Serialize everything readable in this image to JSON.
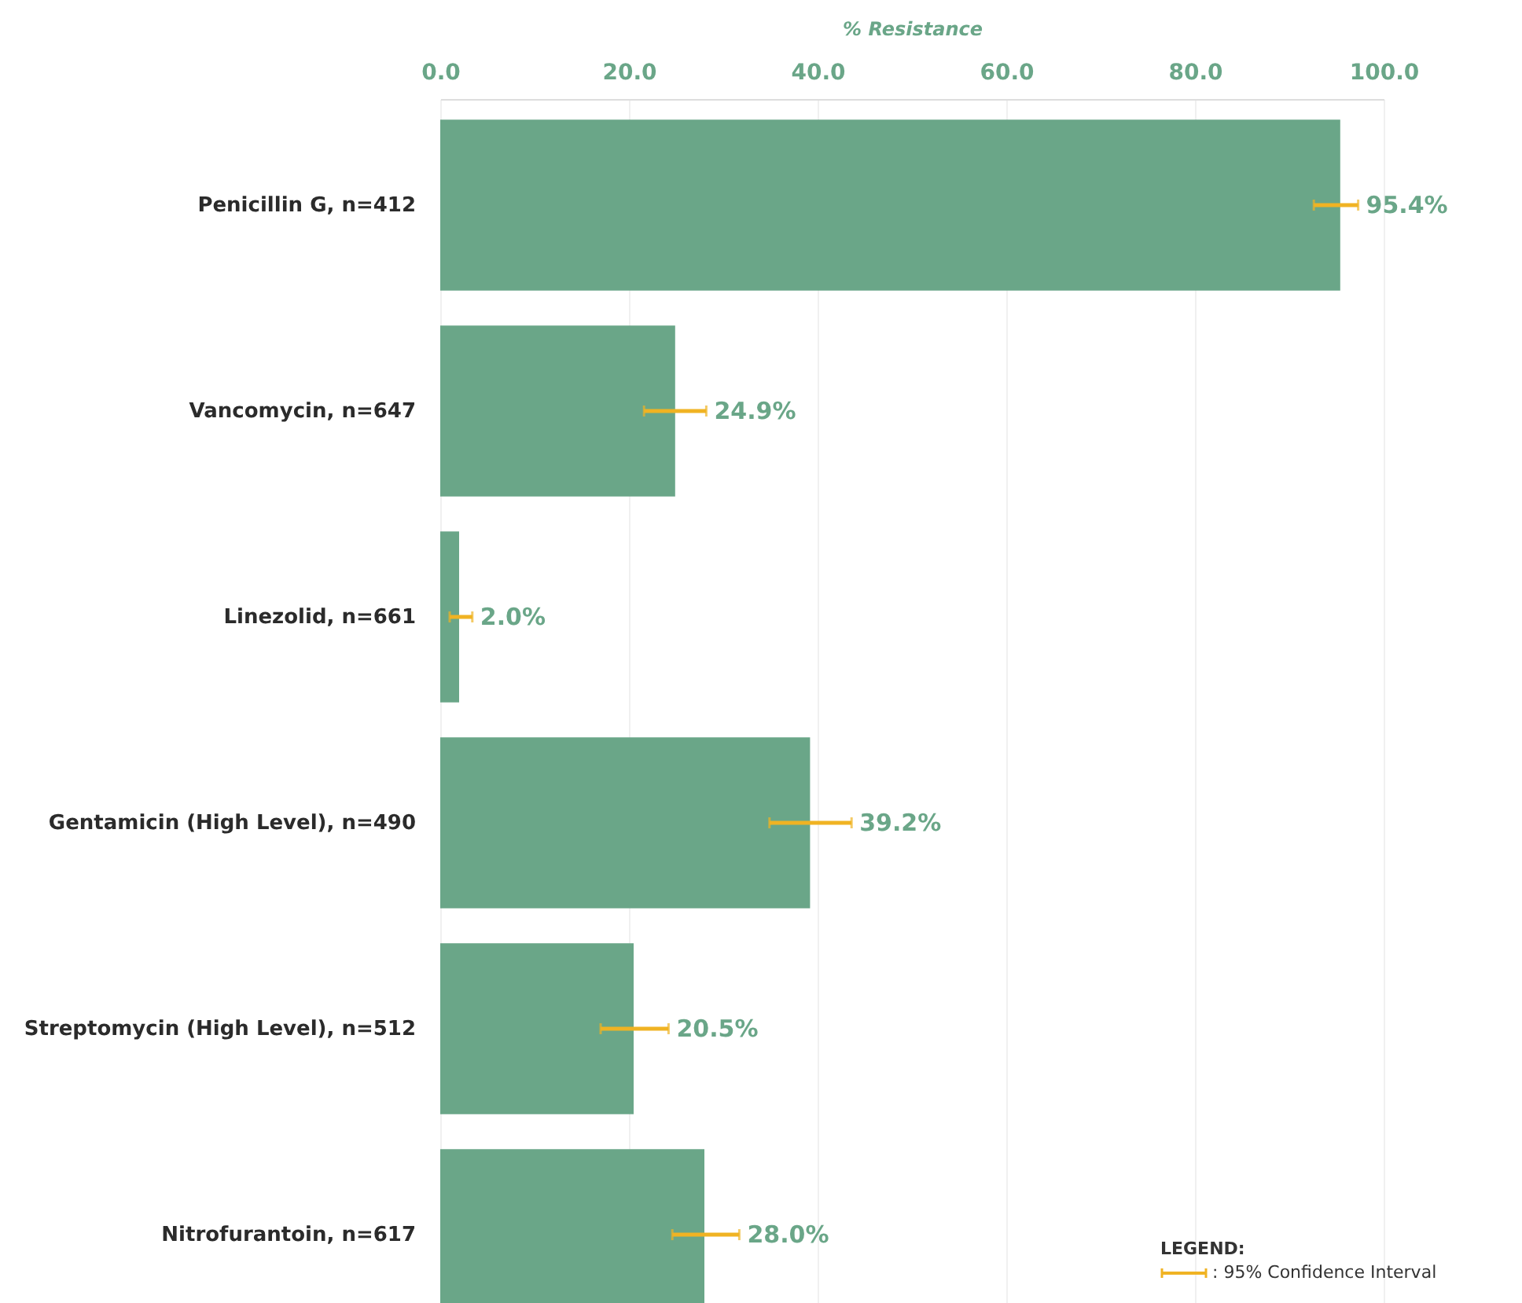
{
  "chart_data": {
    "type": "bar",
    "orientation": "horizontal",
    "xlabel": "% Resistance",
    "categories": [
      "Penicillin G, n=412",
      "Vancomycin, n=647",
      "Linezolid, n=661",
      "Gentamicin (High Level), n=490",
      "Streptomycin (High Level), n=512",
      "Nitrofurantoin, n=617"
    ],
    "values": [
      95.4,
      24.9,
      2.0,
      39.2,
      20.5,
      28.0
    ],
    "errors": [
      [
        92.6,
        97.3
      ],
      [
        21.6,
        28.2
      ],
      [
        1.0,
        3.4
      ],
      [
        34.9,
        43.6
      ],
      [
        17.0,
        24.2
      ],
      [
        24.6,
        31.7
      ]
    ],
    "value_labels": [
      "95.4%",
      "24.9%",
      "2.0%",
      "39.2%",
      "20.5%",
      "28.0%"
    ],
    "color": "#6aa688",
    "xlim": [
      0,
      100
    ],
    "xticks": [
      {
        "value": 0,
        "label": "0.0"
      },
      {
        "value": 20,
        "label": "20.0"
      },
      {
        "value": 40,
        "label": "40.0"
      },
      {
        "value": 60,
        "label": "60.0"
      },
      {
        "value": 80,
        "label": "80.0"
      },
      {
        "value": 100,
        "label": "100.0"
      }
    ],
    "grid": "x",
    "annotations": [
      "LEGEND:",
      ": 95% Confidence Interval"
    ]
  }
}
